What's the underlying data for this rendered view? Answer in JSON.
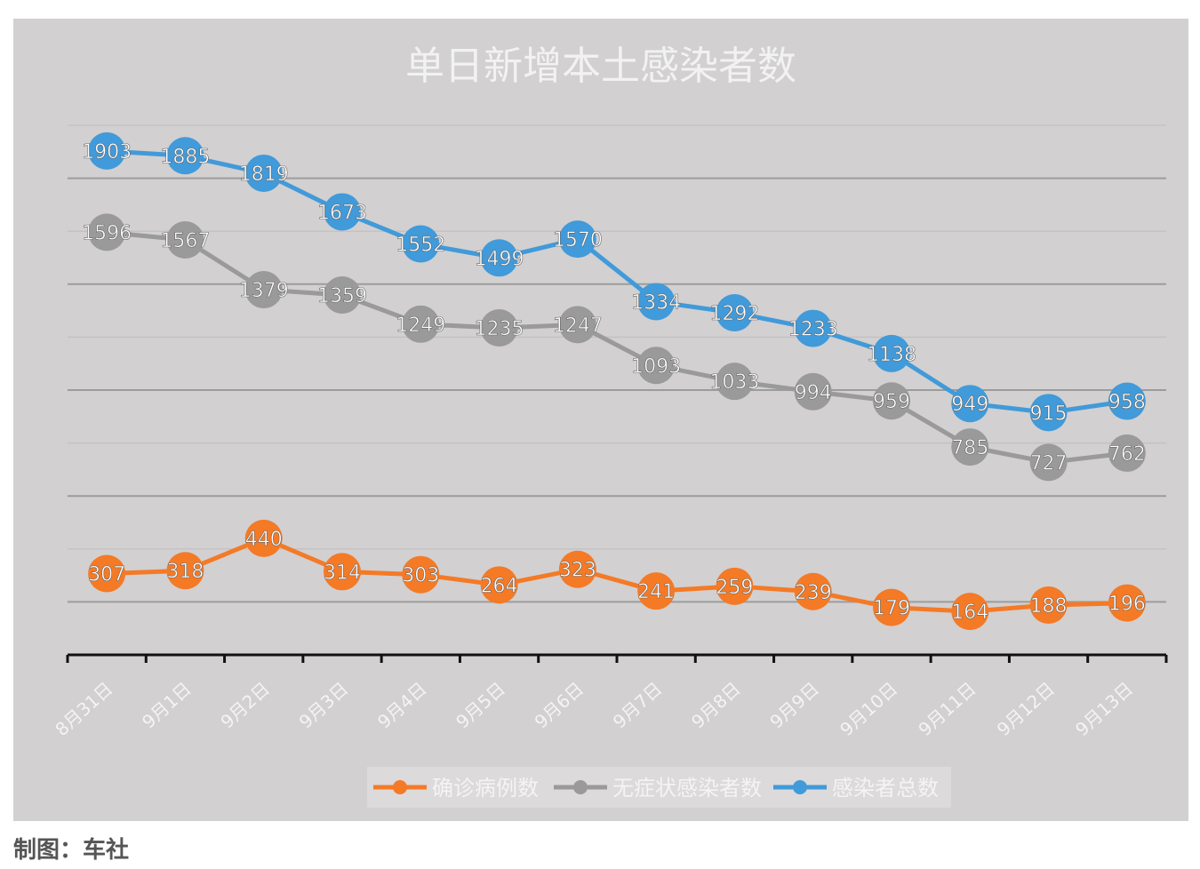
{
  "chart_data": {
    "type": "line",
    "title": "单日新增本土感染者数",
    "categories": [
      "8月31日",
      "9月1日",
      "9月2日",
      "9月3日",
      "9月4日",
      "9月5日",
      "9月6日",
      "9月7日",
      "9月8日",
      "9月9日",
      "9月10日",
      "9月11日",
      "9月12日",
      "9月13日"
    ],
    "series": [
      {
        "name": "确诊病例数",
        "color": "#f47a26",
        "values": [
          307,
          318,
          440,
          314,
          303,
          264,
          323,
          241,
          259,
          239,
          179,
          164,
          188,
          196
        ]
      },
      {
        "name": "无症状感染者数",
        "color": "#9a9a9a",
        "values": [
          1596,
          1567,
          1379,
          1359,
          1249,
          1235,
          1247,
          1093,
          1033,
          994,
          959,
          785,
          727,
          762
        ]
      },
      {
        "name": "感染者总数",
        "color": "#419ad9",
        "values": [
          1903,
          1885,
          1819,
          1673,
          1552,
          1499,
          1570,
          1334,
          1292,
          1233,
          1138,
          949,
          915,
          958
        ]
      }
    ],
    "ylim": [
      0,
      2000
    ],
    "grid": true,
    "legend": "bottom"
  },
  "credit": "制图：车社"
}
